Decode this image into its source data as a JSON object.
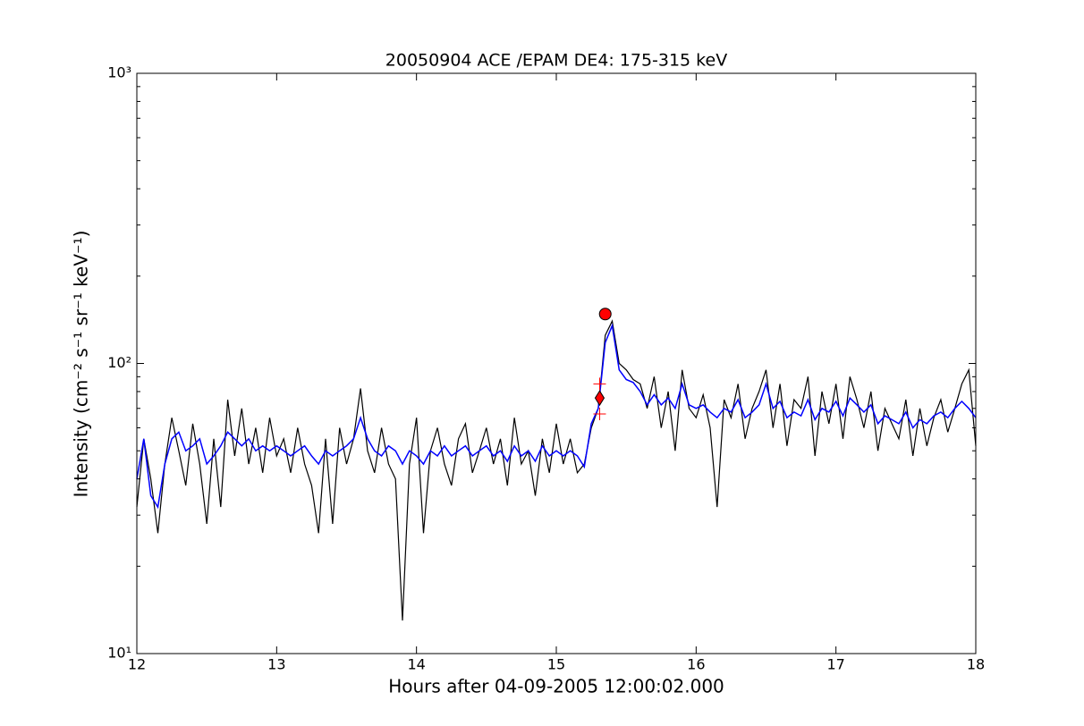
{
  "chart_data": {
    "type": "line",
    "title": "20050904 ACE /EPAM DE4: 175-315 keV",
    "xlabel": "Hours after 04-09-2005 12:00:02.000",
    "ylabel": "Intensity (cm⁻² s⁻¹ sr⁻¹ keV⁻¹)",
    "xlim": [
      12,
      18
    ],
    "xticks": [
      12,
      13,
      14,
      15,
      16,
      17,
      18
    ],
    "ylim": [
      10,
      1000
    ],
    "log_y": true,
    "yticks": [
      {
        "value": 10,
        "label": "10¹"
      },
      {
        "value": 100,
        "label": "10²"
      },
      {
        "value": 1000,
        "label": "10³"
      }
    ],
    "yminor_ticks": [
      20,
      30,
      40,
      50,
      60,
      70,
      80,
      90,
      200,
      300,
      400,
      500,
      600,
      700,
      800,
      900
    ],
    "x": [
      12.0,
      12.05,
      12.1,
      12.15,
      12.2,
      12.25,
      12.3,
      12.35,
      12.4,
      12.45,
      12.5,
      12.55,
      12.6,
      12.65,
      12.7,
      12.75,
      12.8,
      12.85,
      12.9,
      12.95,
      13.0,
      13.05,
      13.1,
      13.15,
      13.2,
      13.25,
      13.3,
      13.35,
      13.4,
      13.45,
      13.5,
      13.55,
      13.6,
      13.65,
      13.7,
      13.75,
      13.8,
      13.85,
      13.9,
      13.95,
      14.0,
      14.05,
      14.1,
      14.15,
      14.2,
      14.25,
      14.3,
      14.35,
      14.4,
      14.45,
      14.5,
      14.55,
      14.6,
      14.65,
      14.7,
      14.75,
      14.8,
      14.85,
      14.9,
      14.95,
      15.0,
      15.05,
      15.1,
      15.15,
      15.2,
      15.25,
      15.3,
      15.35,
      15.4,
      15.45,
      15.5,
      15.55,
      15.6,
      15.65,
      15.7,
      15.75,
      15.8,
      15.85,
      15.9,
      15.95,
      16.0,
      16.05,
      16.1,
      16.15,
      16.2,
      16.25,
      16.3,
      16.35,
      16.4,
      16.45,
      16.5,
      16.55,
      16.6,
      16.65,
      16.7,
      16.75,
      16.8,
      16.85,
      16.9,
      16.95,
      17.0,
      17.05,
      17.1,
      17.15,
      17.2,
      17.25,
      17.3,
      17.35,
      17.4,
      17.45,
      17.5,
      17.55,
      17.6,
      17.65,
      17.7,
      17.75,
      17.8,
      17.85,
      17.9,
      17.95,
      18.0
    ],
    "series": [
      {
        "color": "#000000",
        "width": 1.2,
        "values": [
          32,
          55,
          40,
          26,
          45,
          65,
          50,
          38,
          62,
          45,
          28,
          55,
          32,
          75,
          48,
          70,
          45,
          60,
          42,
          65,
          48,
          55,
          42,
          60,
          45,
          38,
          26,
          55,
          28,
          60,
          45,
          55,
          82,
          50,
          42,
          60,
          45,
          40,
          13,
          45,
          65,
          26,
          50,
          60,
          45,
          38,
          55,
          62,
          42,
          50,
          60,
          45,
          55,
          38,
          65,
          45,
          50,
          35,
          55,
          42,
          62,
          45,
          55,
          42,
          45,
          60,
          70,
          125,
          140,
          100,
          95,
          88,
          85,
          70,
          90,
          60,
          80,
          50,
          95,
          70,
          65,
          78,
          60,
          32,
          75,
          65,
          85,
          55,
          70,
          80,
          95,
          60,
          85,
          52,
          75,
          70,
          90,
          48,
          80,
          62,
          85,
          55,
          90,
          75,
          60,
          80,
          50,
          70,
          62,
          55,
          75,
          48,
          70,
          52,
          65,
          75,
          58,
          70,
          85,
          95,
          52
        ]
      },
      {
        "color": "#0000ff",
        "width": 1.5,
        "values": [
          40,
          55,
          35,
          32,
          45,
          55,
          58,
          50,
          52,
          55,
          45,
          48,
          52,
          58,
          55,
          52,
          55,
          50,
          52,
          50,
          52,
          50,
          48,
          50,
          52,
          48,
          45,
          50,
          48,
          50,
          52,
          55,
          65,
          55,
          50,
          48,
          52,
          50,
          45,
          50,
          48,
          45,
          50,
          48,
          52,
          48,
          50,
          52,
          48,
          50,
          52,
          48,
          50,
          46,
          52,
          48,
          50,
          46,
          52,
          48,
          50,
          48,
          50,
          48,
          44,
          62,
          70,
          118,
          135,
          95,
          88,
          86,
          80,
          72,
          78,
          72,
          76,
          70,
          85,
          72,
          70,
          72,
          68,
          65,
          70,
          68,
          75,
          65,
          68,
          72,
          85,
          70,
          74,
          65,
          68,
          66,
          75,
          64,
          70,
          68,
          74,
          66,
          76,
          72,
          68,
          72,
          62,
          66,
          64,
          62,
          68,
          60,
          64,
          62,
          66,
          68,
          65,
          70,
          74,
          70,
          65
        ]
      }
    ],
    "markers": [
      {
        "x": 15.35,
        "y": 148,
        "marker": "circle",
        "color": "#ff0000"
      },
      {
        "x": 15.31,
        "y": 76,
        "marker": "diamond",
        "color": "#ff0000"
      },
      {
        "x": 15.31,
        "y": 85,
        "marker": "plus",
        "color": "#ff0000"
      },
      {
        "x": 15.31,
        "y": 67,
        "marker": "plus",
        "color": "#ff0000"
      }
    ]
  }
}
